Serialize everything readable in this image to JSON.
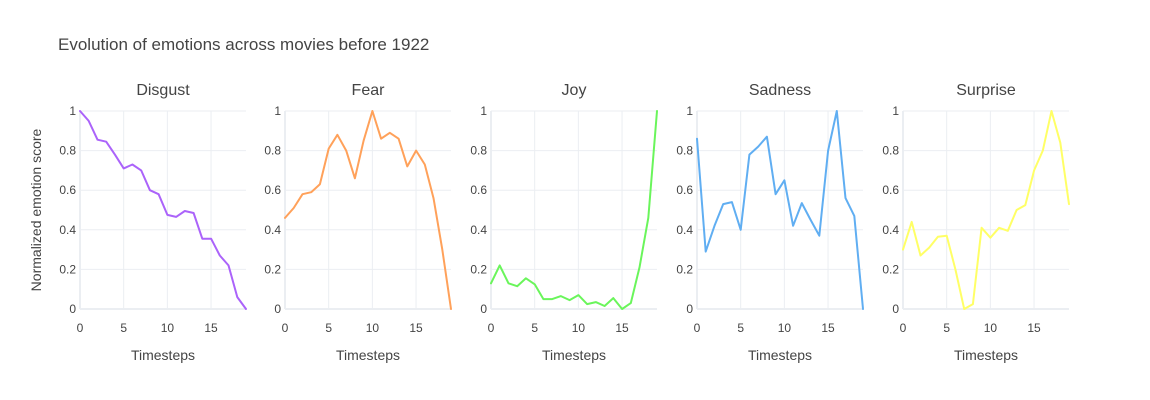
{
  "chart_data": {
    "type": "line",
    "title": "Evolution of emotions across movies before 1922",
    "ylabel": "Normalized emotion score",
    "xlabel": "Timesteps",
    "xlim": [
      0,
      19
    ],
    "ylim": [
      0,
      1
    ],
    "x": [
      0,
      1,
      2,
      3,
      4,
      5,
      6,
      7,
      8,
      9,
      10,
      11,
      12,
      13,
      14,
      15,
      16,
      17,
      18,
      19
    ],
    "x_ticks": [
      0,
      5,
      10,
      15
    ],
    "y_ticks": [
      0,
      0.2,
      0.4,
      0.6,
      0.8,
      1
    ],
    "y_tick_labels": [
      "0",
      "0.2",
      "0.4",
      "0.6",
      "0.8",
      "1"
    ],
    "grid": true,
    "panels": [
      {
        "name": "Disgust",
        "color": "#ab63fa",
        "values": [
          1.0,
          0.95,
          0.855,
          0.845,
          0.78,
          0.71,
          0.73,
          0.7,
          0.6,
          0.58,
          0.475,
          0.465,
          0.495,
          0.485,
          0.355,
          0.355,
          0.27,
          0.22,
          0.06,
          0.0
        ]
      },
      {
        "name": "Fear",
        "color": "#ffa15a",
        "values": [
          0.46,
          0.51,
          0.58,
          0.59,
          0.63,
          0.81,
          0.88,
          0.8,
          0.66,
          0.85,
          1.0,
          0.86,
          0.89,
          0.86,
          0.72,
          0.8,
          0.73,
          0.56,
          0.3,
          0.0
        ]
      },
      {
        "name": "Joy",
        "color": "#6af55b",
        "values": [
          0.13,
          0.22,
          0.13,
          0.115,
          0.155,
          0.125,
          0.05,
          0.05,
          0.065,
          0.045,
          0.07,
          0.025,
          0.035,
          0.015,
          0.055,
          0.0,
          0.03,
          0.21,
          0.46,
          1.0
        ]
      },
      {
        "name": "Sadness",
        "color": "#60aef2",
        "values": [
          0.86,
          0.29,
          0.42,
          0.53,
          0.54,
          0.4,
          0.78,
          0.82,
          0.87,
          0.58,
          0.65,
          0.42,
          0.535,
          0.45,
          0.37,
          0.8,
          1.0,
          0.56,
          0.47,
          0.0
        ]
      },
      {
        "name": "Surprise",
        "color": "#ffff66",
        "values": [
          0.3,
          0.44,
          0.27,
          0.31,
          0.365,
          0.37,
          0.2,
          0.0,
          0.025,
          0.41,
          0.36,
          0.41,
          0.395,
          0.5,
          0.525,
          0.7,
          0.8,
          1.0,
          0.84,
          0.53
        ]
      }
    ]
  }
}
